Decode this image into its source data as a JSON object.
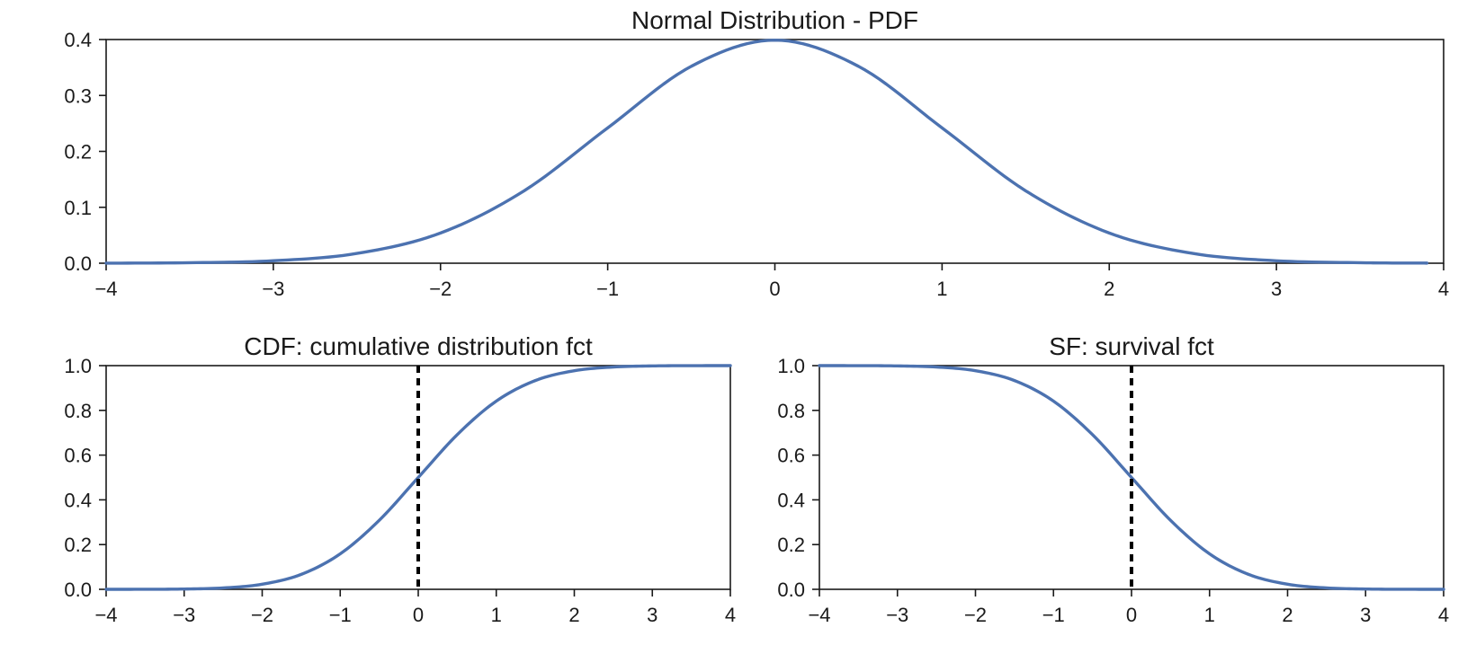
{
  "chart_data": [
    {
      "type": "line",
      "title": "Normal Distribution - PDF",
      "xlabel": "",
      "ylabel": "",
      "xlim": [
        -4,
        4
      ],
      "ylim": [
        0,
        0.4
      ],
      "xticks": [
        -4,
        -3,
        -2,
        -1,
        0,
        1,
        2,
        3,
        4
      ],
      "xtick_labels": [
        "−4",
        "−3",
        "−2",
        "−1",
        "0",
        "1",
        "2",
        "3",
        "4"
      ],
      "yticks": [
        0,
        0.1,
        0.2,
        0.3,
        0.4
      ],
      "ytick_labels": [
        "0.0",
        "0.1",
        "0.2",
        "0.3",
        "0.4"
      ],
      "grid": false,
      "line_color": "#4c72b0",
      "series": [
        {
          "x": [
            -4,
            -3.5,
            -3,
            -2.5,
            -2,
            -1.5,
            -1,
            -0.5,
            0,
            0.5,
            1,
            1.5,
            2,
            2.5,
            3,
            3.5,
            3.9
          ],
          "values": [
            0.0001,
            0.0009,
            0.0044,
            0.0175,
            0.054,
            0.1295,
            0.242,
            0.3521,
            0.3989,
            0.3521,
            0.242,
            0.1295,
            0.054,
            0.0175,
            0.0044,
            0.0009,
            0.0002
          ]
        }
      ]
    },
    {
      "type": "line",
      "title": "CDF: cumulative distribution fct",
      "xlabel": "",
      "ylabel": "",
      "xlim": [
        -4,
        4
      ],
      "ylim": [
        0,
        1
      ],
      "xticks": [
        -4,
        -3,
        -2,
        -1,
        0,
        1,
        2,
        3,
        4
      ],
      "xtick_labels": [
        "−4",
        "−3",
        "−2",
        "−1",
        "0",
        "1",
        "2",
        "3",
        "4"
      ],
      "yticks": [
        0,
        0.2,
        0.4,
        0.6,
        0.8,
        1.0
      ],
      "ytick_labels": [
        "0.0",
        "0.2",
        "0.4",
        "0.6",
        "0.8",
        "1.0"
      ],
      "grid": false,
      "line_color": "#4c72b0",
      "reference_line": {
        "x": 0,
        "style": "dashed",
        "color": "#000000"
      },
      "series": [
        {
          "x": [
            -4,
            -3.5,
            -3,
            -2.5,
            -2,
            -1.5,
            -1,
            -0.5,
            0,
            0.5,
            1,
            1.5,
            2,
            2.5,
            3,
            3.5,
            4
          ],
          "values": [
            0.0,
            0.0002,
            0.0013,
            0.0062,
            0.0228,
            0.0668,
            0.1587,
            0.3085,
            0.5,
            0.6915,
            0.8413,
            0.9332,
            0.9772,
            0.9938,
            0.9987,
            0.9998,
            1.0
          ]
        }
      ]
    },
    {
      "type": "line",
      "title": "SF: survival fct",
      "xlabel": "",
      "ylabel": "",
      "xlim": [
        -4,
        4
      ],
      "ylim": [
        0,
        1
      ],
      "xticks": [
        -4,
        -3,
        -2,
        -1,
        0,
        1,
        2,
        3,
        4
      ],
      "xtick_labels": [
        "−4",
        "−3",
        "−2",
        "−1",
        "0",
        "1",
        "2",
        "3",
        "4"
      ],
      "yticks": [
        0,
        0.2,
        0.4,
        0.6,
        0.8,
        1.0
      ],
      "ytick_labels": [
        "0.0",
        "0.2",
        "0.4",
        "0.6",
        "0.8",
        "1.0"
      ],
      "grid": false,
      "line_color": "#4c72b0",
      "reference_line": {
        "x": 0,
        "style": "dashed",
        "color": "#000000"
      },
      "series": [
        {
          "x": [
            -4,
            -3.5,
            -3,
            -2.5,
            -2,
            -1.5,
            -1,
            -0.5,
            0,
            0.5,
            1,
            1.5,
            2,
            2.5,
            3,
            3.5,
            4
          ],
          "values": [
            1.0,
            0.9998,
            0.9987,
            0.9938,
            0.9772,
            0.9332,
            0.8413,
            0.6915,
            0.5,
            0.3085,
            0.1587,
            0.0668,
            0.0228,
            0.0062,
            0.0013,
            0.0002,
            0.0
          ]
        }
      ]
    }
  ]
}
